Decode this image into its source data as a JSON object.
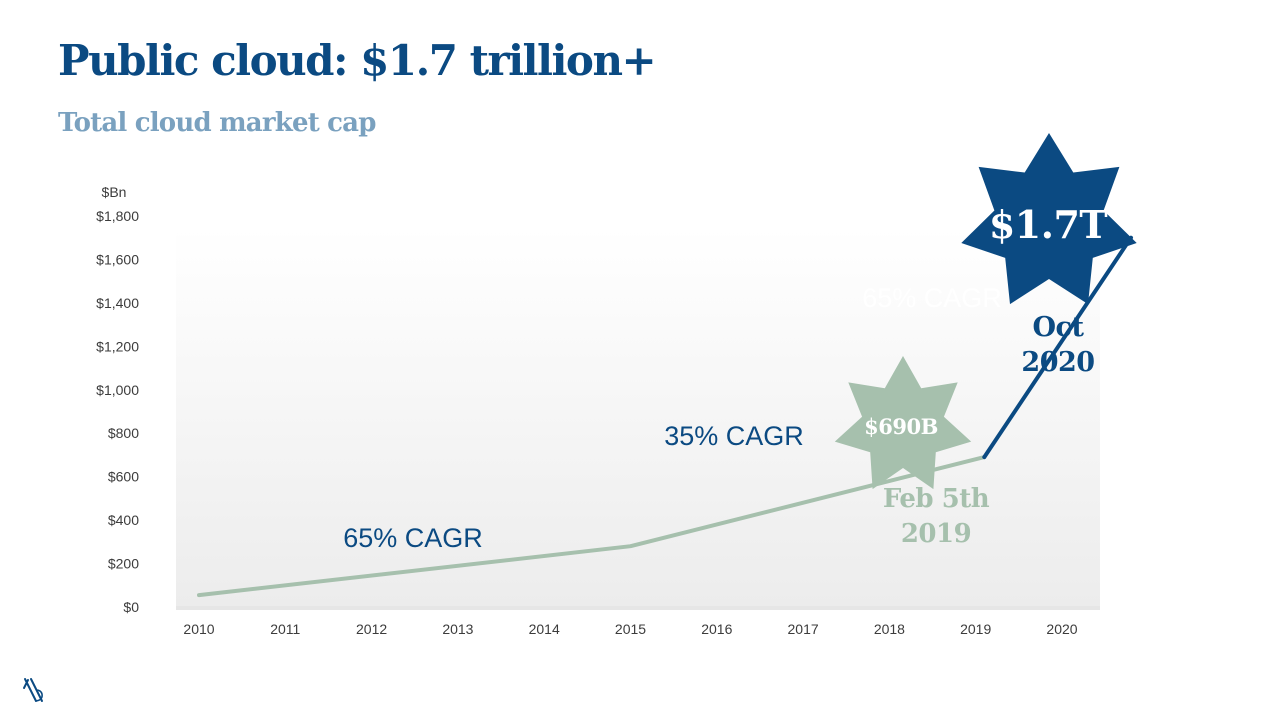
{
  "title": "Public cloud: $1.7 trillion+",
  "subtitle": "Total cloud market cap",
  "colors": {
    "title": "#0b4a82",
    "subtitle": "#7aa1bf",
    "navy": "#0b4a82",
    "sage": "#a6c0ad",
    "axis_text": "#3c3c3c"
  },
  "chart_data": {
    "type": "line",
    "ylabel": "$Bn",
    "categories": [
      "2010",
      "2011",
      "2012",
      "2013",
      "2014",
      "2015",
      "2016",
      "2017",
      "2018",
      "2019",
      "2020"
    ],
    "ylim": [
      0,
      1800
    ],
    "yticks": [
      "$0",
      "$200",
      "$400",
      "$600",
      "$800",
      "$1,000",
      "$1,200",
      "$1,400",
      "$1,600",
      "$1,800"
    ],
    "series": [
      {
        "segment": "2010–Feb 2019",
        "points": [
          [
            2010,
            55
          ],
          [
            2015,
            280
          ],
          [
            2019.1,
            690
          ]
        ],
        "color": "#a6c0ad"
      },
      {
        "segment": "Feb 2019–Oct 2020",
        "points": [
          [
            2019.1,
            690
          ],
          [
            2020.8,
            1700
          ]
        ],
        "color": "#0b4a82"
      }
    ],
    "annotations": [
      {
        "text": "65% CAGR",
        "color": "#0b4a82"
      },
      {
        "text": "35% CAGR",
        "color": "#0b4a82"
      },
      {
        "text": "65% CAGR",
        "color": "#ffffff"
      }
    ],
    "callouts": [
      {
        "value_label": "$690B",
        "date_line1": "Feb 5th",
        "date_line2": "2019",
        "star_color": "#a6c0ad",
        "text_color": "#a6c0ad"
      },
      {
        "value_label": "$1.7T",
        "date_line1": "Oct",
        "date_line2": "2020",
        "star_color": "#0b4a82",
        "text_color": "#0b4a82"
      }
    ],
    "grid": false,
    "legend": "none"
  }
}
